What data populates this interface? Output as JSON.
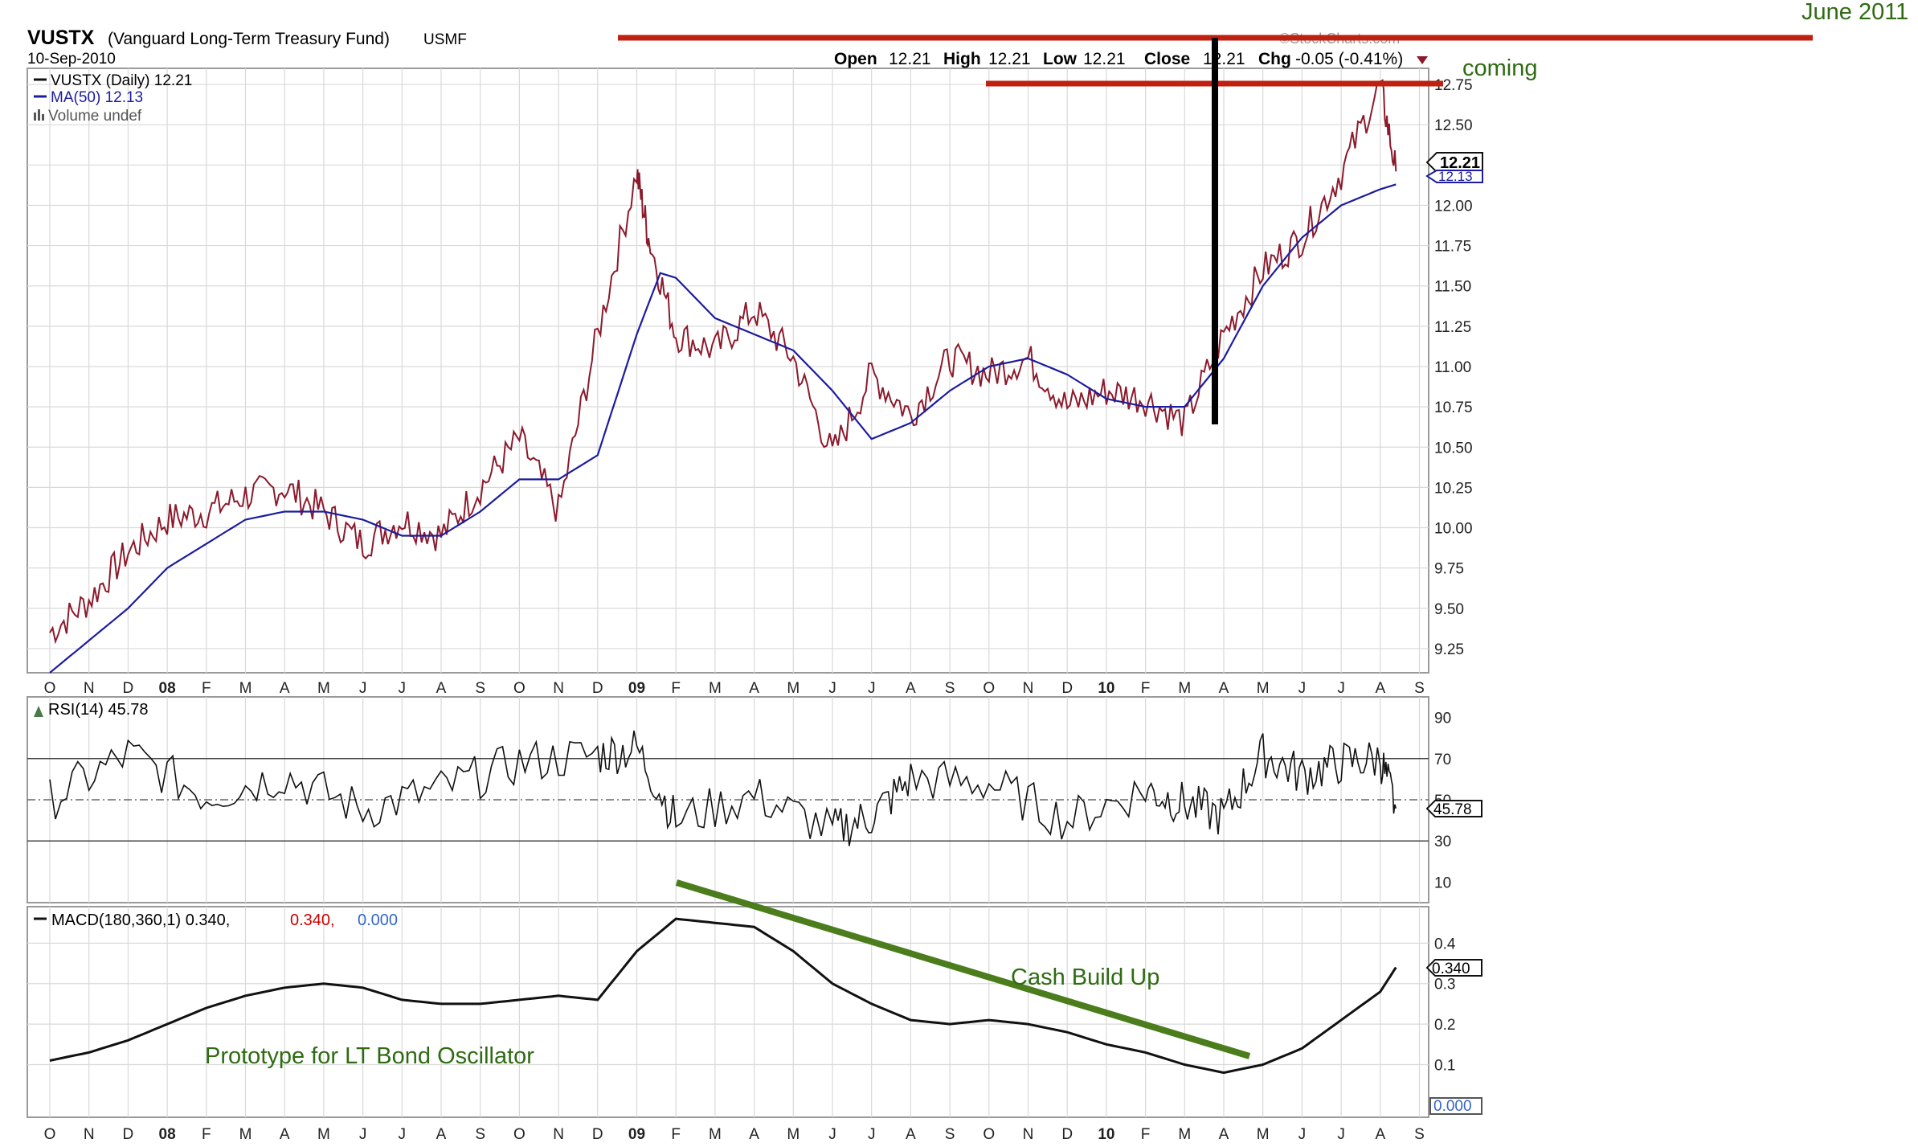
{
  "header": {
    "symbol": "VUSTX",
    "name": "(Vanguard Long-Term Treasury Fund)",
    "exchange": "USMF",
    "date": "10-Sep-2010",
    "watermark": "©StockCharts.com",
    "ohlc": {
      "open_label": "Open",
      "open": "12.21",
      "high_label": "High",
      "high": "12.21",
      "low_label": "Low",
      "low": "12.21",
      "close_label": "Close",
      "close": "12.21",
      "chg_label": "Chg",
      "chg": "-0.05 (-0.41%)"
    }
  },
  "legend": {
    "price": "VUSTX (Daily) 12.21",
    "ma": "MA(50) 12.13",
    "volume": "Volume undef"
  },
  "annotations": {
    "june": "June 2011",
    "coming": "coming",
    "cash": "Cash Build Up",
    "prototype": "Prototype for LT Bond Oscillator"
  },
  "colors": {
    "price": "#8b1a2c",
    "price_dark": "#111111",
    "ma": "#1c1c9e",
    "annotation": "#2e6b12",
    "trendline": "#4b7d1c",
    "redline": "#c0200f",
    "grid": "#d9d9d9",
    "macd_red": "#cc0000",
    "macd_blue": "#3366cc"
  },
  "chart_data": [
    {
      "type": "line",
      "title": "VUSTX (Vanguard Long-Term Treasury Fund) USMF",
      "x_months": [
        "O",
        "N",
        "D",
        "08",
        "F",
        "M",
        "A",
        "M",
        "J",
        "J",
        "A",
        "S",
        "O",
        "N",
        "D",
        "09",
        "F",
        "M",
        "A",
        "M",
        "J",
        "J",
        "A",
        "S",
        "O",
        "N",
        "D",
        "10",
        "F",
        "M",
        "A",
        "M",
        "J",
        "J",
        "A",
        "S"
      ],
      "ylim": [
        9.1,
        12.85
      ],
      "yticks": [
        "9.25",
        "9.50",
        "9.75",
        "10.00",
        "10.25",
        "10.50",
        "10.75",
        "11.00",
        "11.25",
        "11.50",
        "11.75",
        "12.00",
        "12.25",
        "12.50",
        "12.75"
      ],
      "series": [
        {
          "name": "VUSTX (Daily)",
          "x": [
            0,
            1,
            2,
            3,
            4,
            5,
            6,
            7,
            8,
            9,
            10,
            11,
            12,
            13,
            14,
            15,
            15.3,
            16,
            17,
            18,
            19,
            20,
            21,
            22,
            23,
            24,
            25,
            26,
            27,
            28,
            29,
            30,
            31,
            32,
            33,
            34,
            34.4
          ],
          "values": [
            9.35,
            9.55,
            9.85,
            10.05,
            10.1,
            10.2,
            10.25,
            10.1,
            9.9,
            10.05,
            9.95,
            10.25,
            10.55,
            10.1,
            11.2,
            12.2,
            11.8,
            11.2,
            11.1,
            11.35,
            11.05,
            10.45,
            10.95,
            10.7,
            11.05,
            10.95,
            11.05,
            10.75,
            10.85,
            10.8,
            10.65,
            11.2,
            11.6,
            11.8,
            12.2,
            12.75,
            12.21
          ]
        },
        {
          "name": "MA(50)",
          "x": [
            0,
            1,
            2,
            3,
            4,
            5,
            6,
            7,
            8,
            9,
            10,
            11,
            12,
            13,
            14,
            15,
            15.6,
            16,
            17,
            18,
            19,
            20,
            21,
            22,
            23,
            24,
            25,
            26,
            27,
            28,
            29,
            30,
            31,
            32,
            33,
            34,
            34.4
          ],
          "values": [
            9.1,
            9.3,
            9.5,
            9.75,
            9.9,
            10.05,
            10.1,
            10.1,
            10.05,
            9.95,
            9.95,
            10.1,
            10.3,
            10.3,
            10.45,
            11.2,
            11.58,
            11.55,
            11.3,
            11.2,
            11.1,
            10.85,
            10.55,
            10.65,
            10.85,
            11.0,
            11.05,
            10.95,
            10.8,
            10.75,
            10.75,
            11.05,
            11.5,
            11.8,
            12.0,
            12.1,
            12.13
          ]
        }
      ],
      "last_price": "12.21",
      "last_ma": "12.13"
    },
    {
      "type": "line",
      "title": "RSI(14) 45.78",
      "ylim": [
        0,
        100
      ],
      "yticks": [
        "10",
        "30",
        "50",
        "70",
        "90"
      ],
      "current_label": "45.78",
      "series": [
        {
          "name": "RSI(14)",
          "x": [
            0,
            2,
            4,
            6,
            8,
            10,
            12,
            14,
            15,
            16,
            18,
            20,
            21,
            22,
            24,
            26,
            28,
            29,
            30,
            31,
            32,
            33,
            34,
            34.4
          ],
          "values": [
            50,
            72,
            52,
            62,
            45,
            55,
            68,
            72,
            75,
            40,
            52,
            35,
            42,
            60,
            58,
            40,
            55,
            48,
            42,
            72,
            62,
            68,
            70,
            45.78
          ]
        }
      ]
    },
    {
      "type": "line",
      "title": "MACD(180,360,1) 0.340, 0.340, 0.000",
      "label": "MACD(180,360,1) 0.340,",
      "value_red": "0.340,",
      "value_blue": "0.000",
      "ylim": [
        -0.03,
        0.49
      ],
      "yticks": [
        "0.1",
        "0.2",
        "0.3",
        "0.4"
      ],
      "current_label": "0.340",
      "zero_label": "0.000",
      "series": [
        {
          "name": "MACD(180,360,1)",
          "x": [
            0,
            1,
            2,
            3,
            4,
            5,
            6,
            7,
            8,
            9,
            10,
            11,
            12,
            13,
            14,
            15,
            16,
            17,
            18,
            19,
            20,
            21,
            22,
            23,
            24,
            25,
            26,
            27,
            28,
            29,
            30,
            31,
            32,
            33,
            34,
            34.4
          ],
          "values": [
            0.11,
            0.13,
            0.16,
            0.2,
            0.24,
            0.27,
            0.29,
            0.3,
            0.29,
            0.26,
            0.25,
            0.25,
            0.26,
            0.27,
            0.26,
            0.38,
            0.46,
            0.45,
            0.44,
            0.38,
            0.3,
            0.25,
            0.21,
            0.2,
            0.21,
            0.2,
            0.18,
            0.15,
            0.13,
            0.1,
            0.08,
            0.1,
            0.14,
            0.21,
            0.28,
            0.34
          ]
        }
      ]
    }
  ]
}
